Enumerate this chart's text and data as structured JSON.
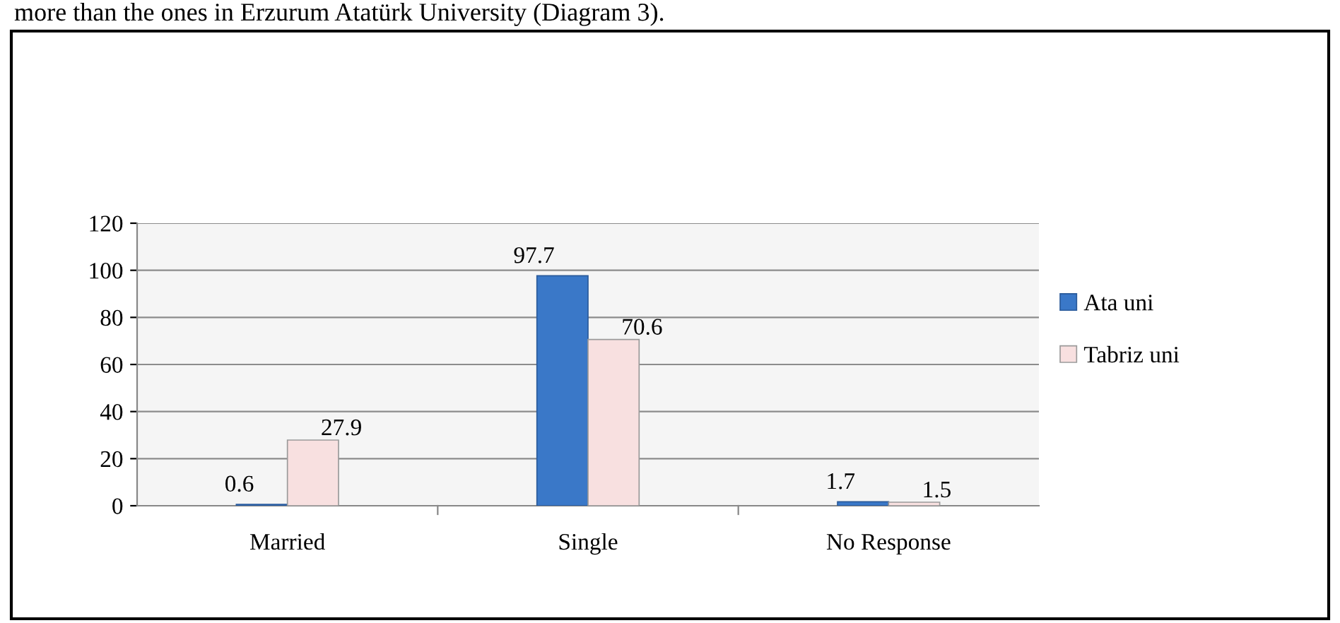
{
  "chart_data": {
    "type": "bar",
    "categories": [
      "Married",
      "Single",
      "No Response"
    ],
    "series": [
      {
        "name": "Ata uni",
        "color": "#3a78c8",
        "values": [
          0.6,
          97.7,
          1.7
        ]
      },
      {
        "name": "Tabriz uni",
        "color": "#f8e0e0",
        "values": [
          27.9,
          70.6,
          1.5
        ]
      }
    ],
    "ylim": [
      0,
      120
    ],
    "yticks": [
      0,
      20,
      40,
      60,
      80,
      100,
      120
    ],
    "grid": "y",
    "legend": "right",
    "data_labels": true,
    "annotations": [
      "more than the ones in Erzurum Atatürk University (Diagram 3)."
    ]
  }
}
